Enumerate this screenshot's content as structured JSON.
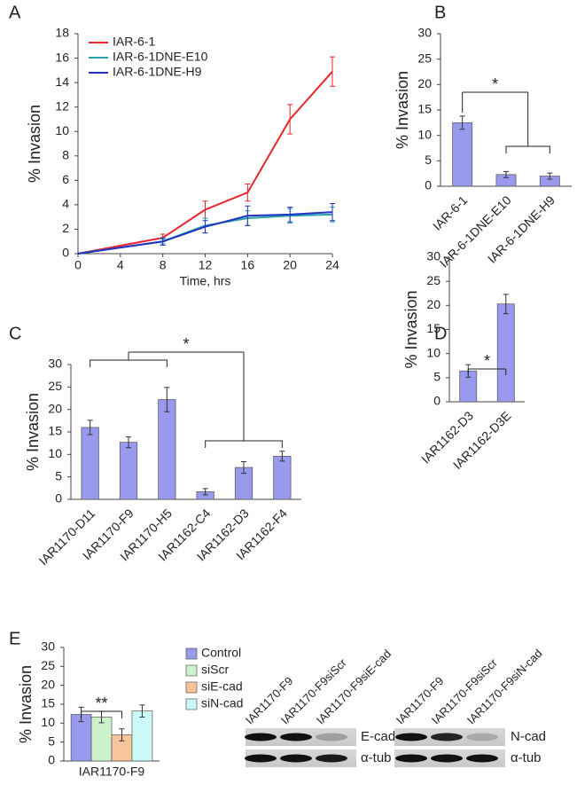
{
  "chart_data": [
    {
      "type": "line",
      "panel": "A",
      "x_label": "Time, hrs",
      "y_label": "% Invasion",
      "x": [
        0,
        8,
        12,
        16,
        20,
        24
      ],
      "series": [
        {
          "name": "IAR-6-1",
          "color": "#e8262b",
          "values": [
            0,
            1.3,
            3.6,
            5.0,
            11.0,
            14.9
          ],
          "errors": [
            0,
            0.3,
            0.7,
            0.7,
            1.2,
            1.2
          ]
        },
        {
          "name": "IAR-6-1DNE-E10",
          "color": "#2aa0a8",
          "values": [
            0,
            1.0,
            2.3,
            2.9,
            3.1,
            3.2
          ],
          "errors": [
            0,
            0.2,
            0.6,
            0.6,
            0.6,
            0.6
          ]
        },
        {
          "name": "IAR-6-1DNE-H9",
          "color": "#1f33c0",
          "values": [
            0,
            1.0,
            2.2,
            3.1,
            3.2,
            3.4
          ],
          "errors": [
            0,
            0.3,
            0.5,
            0.8,
            0.6,
            0.7
          ]
        }
      ],
      "xlim": [
        0,
        24
      ],
      "xticks": [
        0,
        4,
        8,
        12,
        16,
        20,
        24
      ],
      "ylim": [
        0,
        18
      ],
      "yticks": [
        0,
        2,
        4,
        6,
        8,
        10,
        12,
        14,
        16,
        18
      ],
      "legend": "upper-left"
    },
    {
      "type": "bar",
      "panel": "B",
      "y_label": "% Invasion",
      "color": "#9999ee",
      "categories": [
        "IAR-6-1",
        "IAR-6-1DNE-E10",
        "IAR-6-1DNE-H9"
      ],
      "values": [
        12.5,
        2.3,
        2.0
      ],
      "errors": [
        1.3,
        0.6,
        0.6
      ],
      "ylim": [
        0,
        30
      ],
      "yticks": [
        0,
        5,
        10,
        15,
        20,
        25,
        30
      ],
      "annotation": "*"
    },
    {
      "type": "bar",
      "panel": "C",
      "y_label": "% Invasion",
      "color": "#9999ee",
      "categories": [
        "IAR1170-D11",
        "IAR1170-F9",
        "IAR1170-H5",
        "IAR1162-C4",
        "IAR1162-D3",
        "IAR1162-F4"
      ],
      "values": [
        16.0,
        12.7,
        22.2,
        1.7,
        7.1,
        9.6
      ],
      "errors": [
        1.6,
        1.2,
        2.7,
        0.7,
        1.3,
        1.1
      ],
      "ylim": [
        0,
        30
      ],
      "yticks": [
        0,
        5,
        10,
        15,
        20,
        25,
        30
      ],
      "annotation": "*"
    },
    {
      "type": "bar",
      "panel": "D",
      "y_label": "% Invasion",
      "color": "#9999ee",
      "categories": [
        "IAR1162-D3",
        "IAR1162-D3E"
      ],
      "values": [
        6.4,
        20.3
      ],
      "errors": [
        1.3,
        2.0
      ],
      "ylim": [
        0,
        30
      ],
      "yticks": [
        0,
        5,
        10,
        15,
        20,
        25,
        30
      ],
      "annotation": "*"
    },
    {
      "type": "bar",
      "panel": "E",
      "y_label": "% Invasion",
      "categories": [
        "IAR1170-F9"
      ],
      "series": [
        {
          "name": "Control",
          "color": "#9999ee",
          "values": [
            12.3
          ],
          "errors": [
            1.9
          ]
        },
        {
          "name": "siScr",
          "color": "#ccf2cc",
          "values": [
            11.6
          ],
          "errors": [
            1.5
          ]
        },
        {
          "name": "siE-cad",
          "color": "#f8c499",
          "values": [
            6.9
          ],
          "errors": [
            1.6
          ]
        },
        {
          "name": "siN-cad",
          "color": "#ccf8f8",
          "values": [
            13.2
          ],
          "errors": [
            1.6
          ]
        }
      ],
      "ylim": [
        0,
        30
      ],
      "yticks": [
        0,
        5,
        10,
        15,
        20,
        25,
        30
      ],
      "annotation": "**",
      "legend": "right"
    }
  ],
  "blots": [
    {
      "lanes": [
        "IAR1170-F9",
        "IAR1170-F9siScr",
        "IAR1170-F9siE-cad"
      ],
      "bands": [
        "E-cad",
        "α-tub"
      ]
    },
    {
      "lanes": [
        "IAR1170-F9",
        "IAR1170-F9siScr",
        "IAR1170-F9siN-cad"
      ],
      "bands": [
        "N-cad",
        "α-tub"
      ]
    }
  ]
}
